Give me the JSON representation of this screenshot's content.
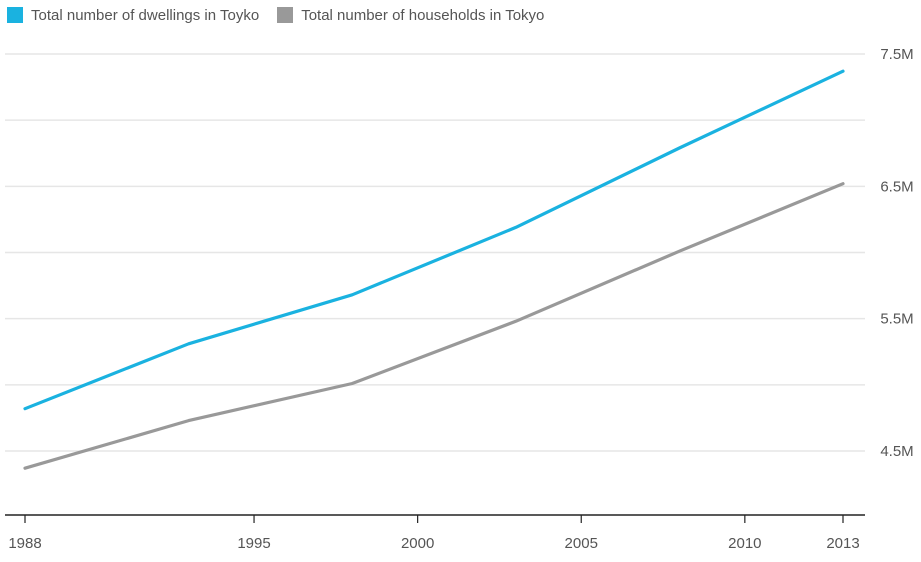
{
  "chart_data": {
    "type": "line",
    "title": "",
    "xlabel": "",
    "ylabel": "",
    "x": [
      1988,
      1993,
      1998,
      2003,
      2008,
      2013
    ],
    "x_ticks": [
      1988,
      1995,
      2000,
      2005,
      2010,
      2013
    ],
    "x_tick_labels": [
      "1988",
      "1995",
      "2000",
      "2005",
      "2010",
      "2013"
    ],
    "xlim": [
      1988,
      2013
    ],
    "ylim": [
      3.98,
      7.58
    ],
    "y_ticks": [
      4.5,
      5.5,
      6.5,
      7.5
    ],
    "y_tick_labels": [
      "4.5M",
      "5.5M",
      "6.5M",
      "7.5M"
    ],
    "y_minor_gridlines": [
      5.0,
      6.0,
      7.0
    ],
    "grid": true,
    "legend_position": "top-left",
    "series": [
      {
        "name": "Total number of dwellings in Toyko",
        "color": "#1ab2e0",
        "values": [
          4.82,
          5.31,
          5.68,
          6.19,
          6.79,
          7.37
        ]
      },
      {
        "name": "Total number of households in Tokyo",
        "color": "#999999",
        "values": [
          4.37,
          4.73,
          5.01,
          5.48,
          6.01,
          6.52
        ]
      }
    ]
  }
}
